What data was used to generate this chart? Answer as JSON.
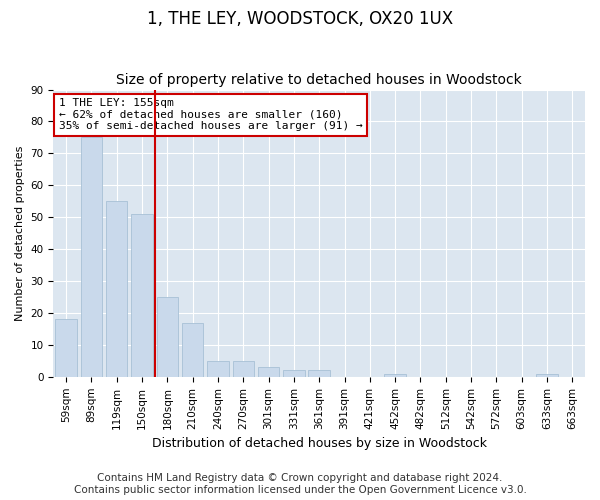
{
  "title": "1, THE LEY, WOODSTOCK, OX20 1UX",
  "subtitle": "Size of property relative to detached houses in Woodstock",
  "xlabel": "Distribution of detached houses by size in Woodstock",
  "ylabel": "Number of detached properties",
  "bar_labels": [
    "59sqm",
    "89sqm",
    "119sqm",
    "150sqm",
    "180sqm",
    "210sqm",
    "240sqm",
    "270sqm",
    "301sqm",
    "331sqm",
    "361sqm",
    "391sqm",
    "421sqm",
    "452sqm",
    "482sqm",
    "512sqm",
    "542sqm",
    "572sqm",
    "603sqm",
    "633sqm",
    "663sqm"
  ],
  "bar_values": [
    18,
    75,
    55,
    51,
    25,
    17,
    5,
    5,
    3,
    2,
    2,
    0,
    0,
    1,
    0,
    0,
    0,
    0,
    0,
    1,
    0
  ],
  "bar_color": "#c9d9eb",
  "bar_edge_color": "#a8c0d6",
  "vline_x_index": 3,
  "vline_color": "#cc0000",
  "ylim": [
    0,
    90
  ],
  "yticks": [
    0,
    10,
    20,
    30,
    40,
    50,
    60,
    70,
    80,
    90
  ],
  "annotation_text": "1 THE LEY: 155sqm\n← 62% of detached houses are smaller (160)\n35% of semi-detached houses are larger (91) →",
  "annotation_box_facecolor": "#ffffff",
  "annotation_box_edgecolor": "#cc0000",
  "footer_line1": "Contains HM Land Registry data © Crown copyright and database right 2024.",
  "footer_line2": "Contains public sector information licensed under the Open Government Licence v3.0.",
  "fig_facecolor": "#ffffff",
  "axes_facecolor": "#dce6f0",
  "grid_color": "#ffffff",
  "title_fontsize": 12,
  "subtitle_fontsize": 10,
  "footer_fontsize": 7.5,
  "ylabel_fontsize": 8,
  "xlabel_fontsize": 9,
  "tick_fontsize": 7.5,
  "annot_fontsize": 8
}
